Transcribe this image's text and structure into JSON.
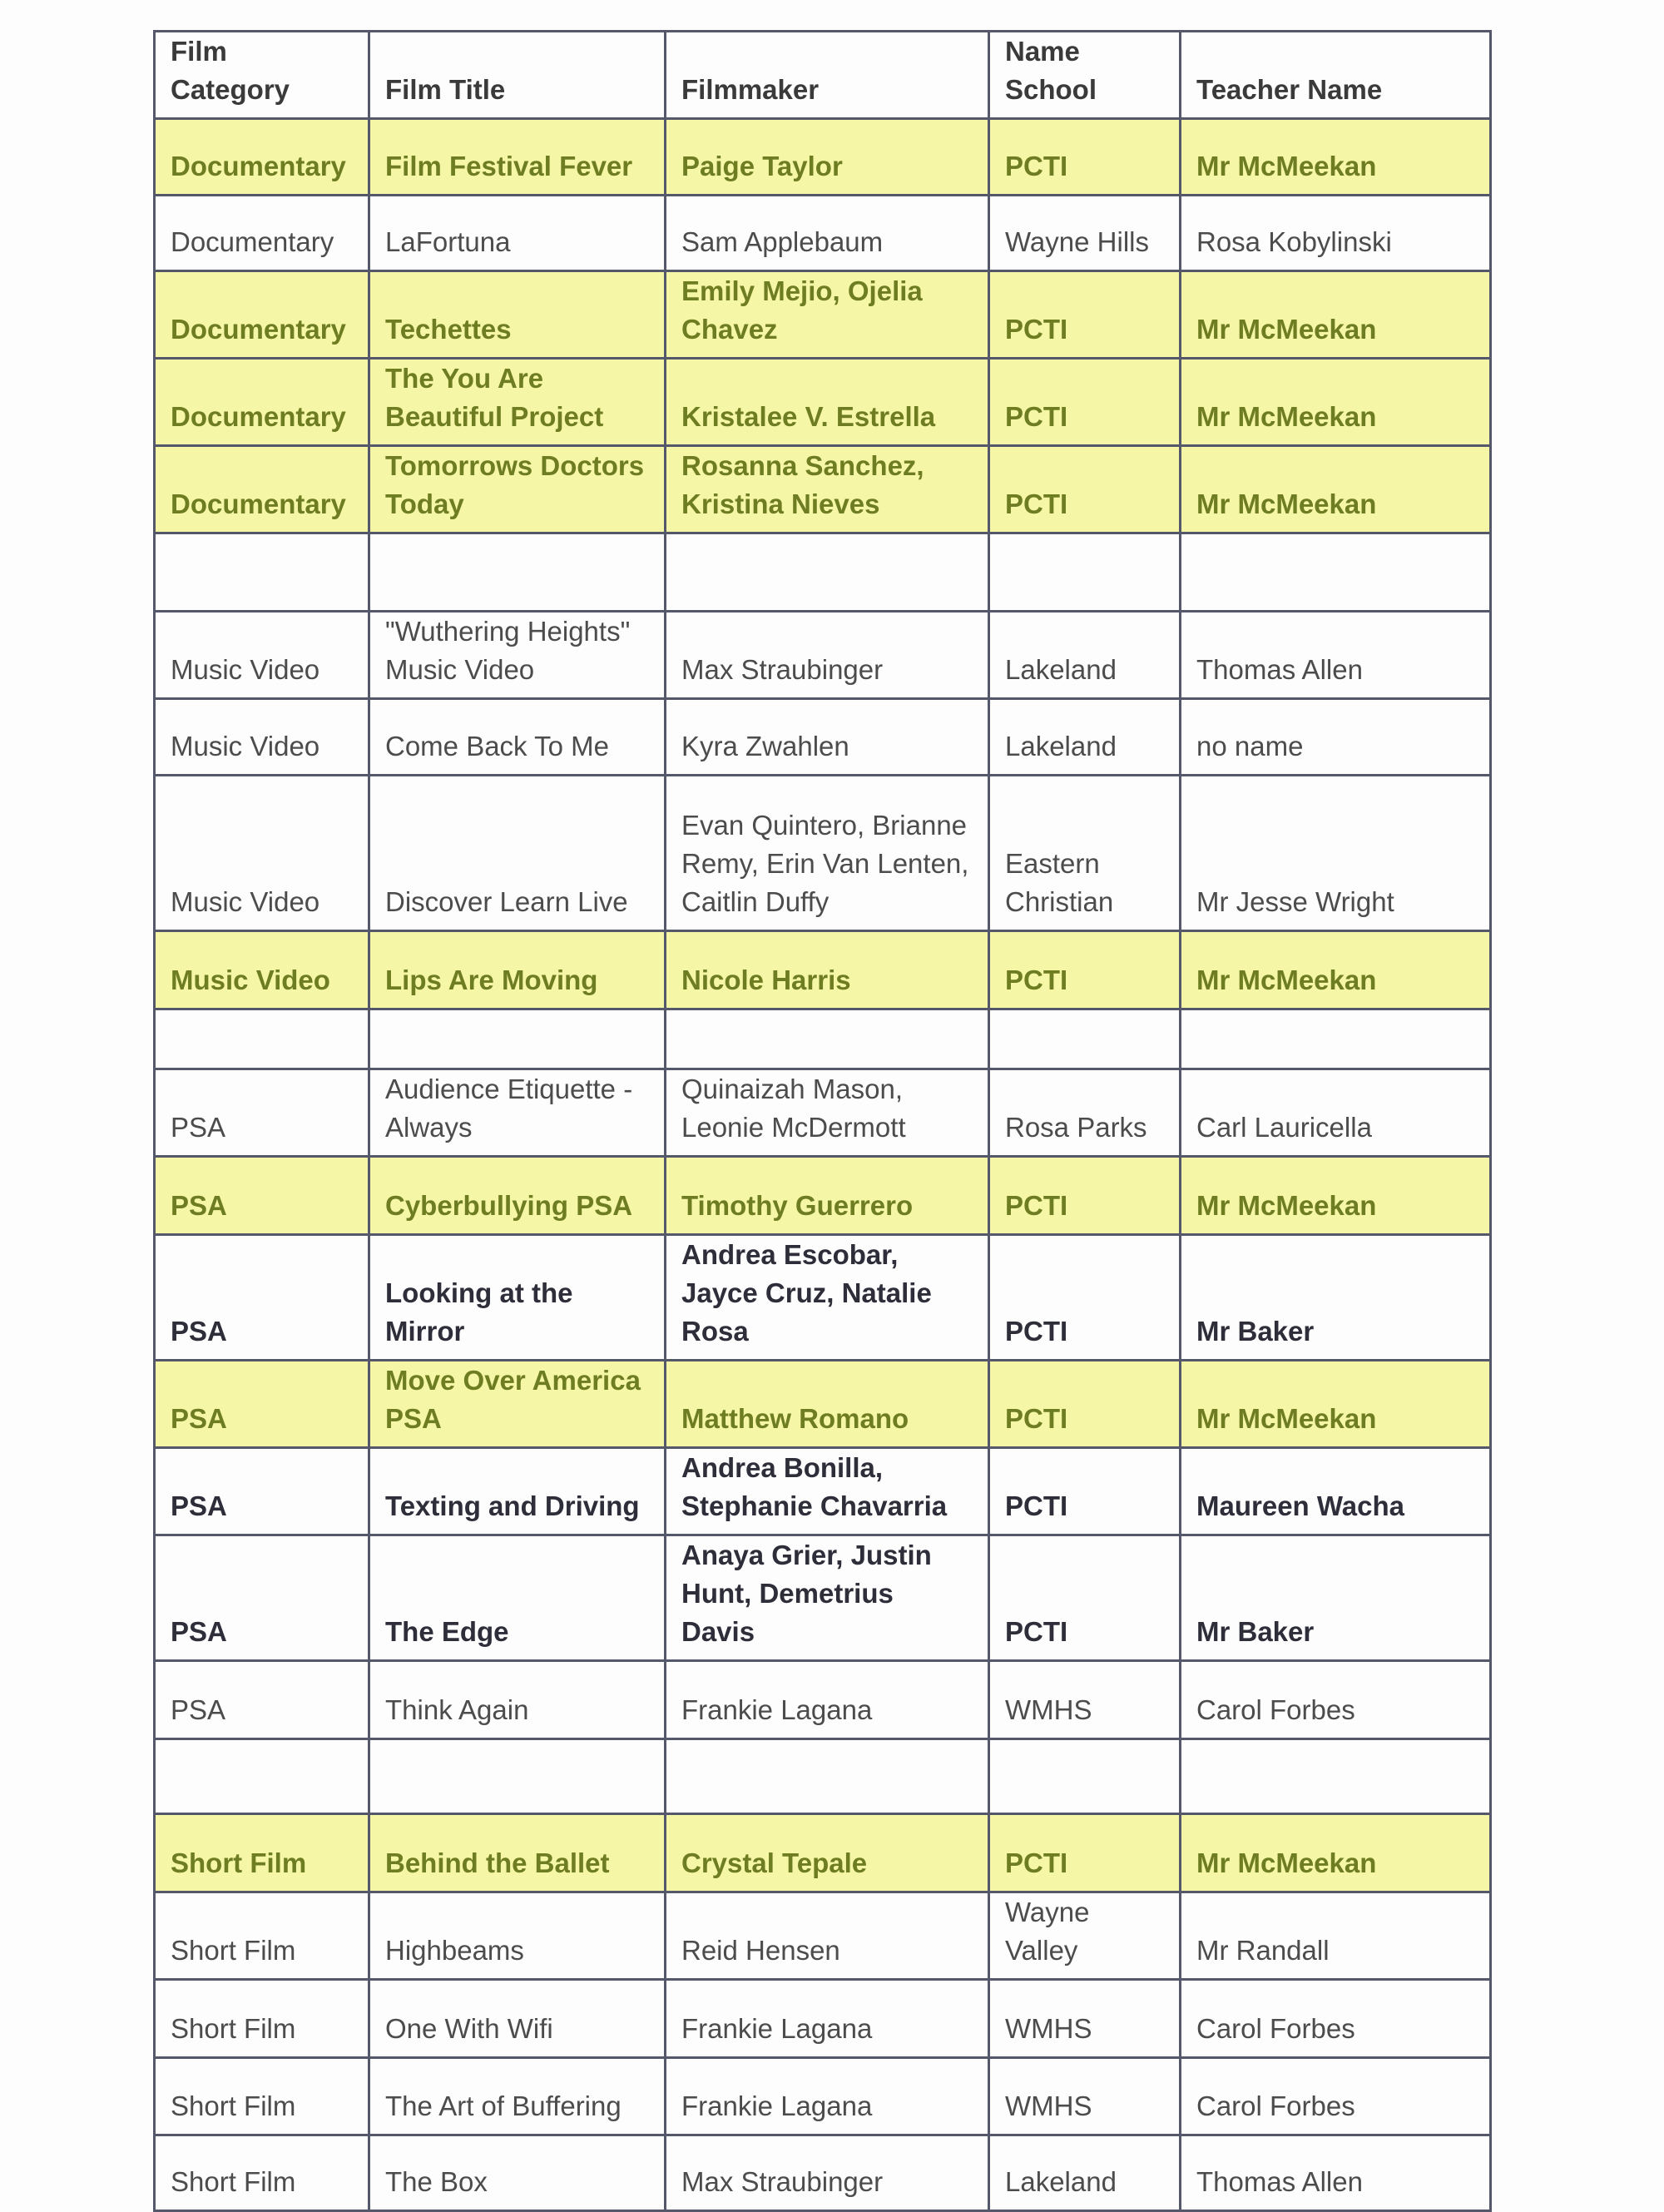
{
  "highlight_color": "#f6f7a6",
  "highlight_text_color": "#6f7d22",
  "headers": [
    "Film Category",
    "Film Title",
    "Filmmaker",
    "Name School",
    "Teacher Name"
  ],
  "rows": [
    {
      "style": "hl",
      "cells": [
        "Documentary",
        "Film Festival Fever",
        "Paige Taylor",
        "PCTI",
        "Mr McMeekan"
      ]
    },
    {
      "style": "plain",
      "cells": [
        "Documentary",
        "LaFortuna",
        "Sam Applebaum",
        "Wayne Hills",
        "Rosa Kobylinski"
      ]
    },
    {
      "style": "hl",
      "cells": [
        "Documentary",
        "Techettes",
        "Emily Mejio, Ojelia Chavez",
        "PCTI",
        "Mr McMeekan"
      ]
    },
    {
      "style": "hl",
      "cells": [
        "Documentary",
        "The You Are Beautiful Project",
        "Kristalee V. Estrella",
        "PCTI",
        "Mr McMeekan"
      ]
    },
    {
      "style": "hl",
      "cells": [
        "Documentary",
        "Tomorrows Doctors Today",
        "Rosanna Sanchez, Kristina Nieves",
        "PCTI",
        "Mr McMeekan"
      ]
    },
    {
      "style": "blank",
      "cells": [
        "",
        "",
        "",
        "",
        ""
      ]
    },
    {
      "style": "plain",
      "cells": [
        "Music Video",
        "\"Wuthering Heights\" Music Video",
        "Max Straubinger",
        "Lakeland",
        "Thomas Allen"
      ]
    },
    {
      "style": "plain",
      "cells": [
        "Music Video",
        "Come Back To Me",
        "Kyra Zwahlen",
        "Lakeland",
        "no name"
      ]
    },
    {
      "style": "plain",
      "cells": [
        "Music Video",
        "Discover Learn Live",
        "Evan Quintero, Brianne Remy, Erin Van Lenten, Caitlin Duffy",
        "Eastern Christian",
        "Mr Jesse Wright"
      ]
    },
    {
      "style": "hl",
      "cells": [
        "Music Video",
        "Lips Are Moving",
        "Nicole Harris",
        "PCTI",
        "Mr McMeekan"
      ]
    },
    {
      "style": "blank",
      "cells": [
        "",
        "",
        "",
        "",
        ""
      ]
    },
    {
      "style": "plain",
      "cells": [
        "PSA",
        "Audience Etiquette - Always",
        "Quinaizah Mason, Leonie McDermott",
        "Rosa Parks",
        "Carl Lauricella"
      ]
    },
    {
      "style": "hl",
      "cells": [
        "PSA",
        "Cyberbullying PSA",
        "Timothy Guerrero",
        "PCTI",
        "Mr McMeekan"
      ]
    },
    {
      "style": "bold",
      "cells": [
        "PSA",
        "Looking at the Mirror",
        "Andrea Escobar, Jayce Cruz, Natalie Rosa",
        "PCTI",
        "Mr Baker"
      ]
    },
    {
      "style": "hl",
      "cells": [
        "PSA",
        "Move Over America PSA",
        "Matthew Romano",
        "PCTI",
        "Mr McMeekan"
      ]
    },
    {
      "style": "bold",
      "cells": [
        "PSA",
        "Texting and Driving",
        "Andrea Bonilla, Stephanie Chavarria",
        "PCTI",
        "Maureen Wacha"
      ]
    },
    {
      "style": "bold",
      "cells": [
        "PSA",
        "The Edge",
        "Anaya Grier, Justin Hunt, Demetrius Davis",
        "PCTI",
        "Mr Baker"
      ]
    },
    {
      "style": "plain",
      "cells": [
        "PSA",
        "Think Again",
        "Frankie Lagana",
        "WMHS",
        "Carol Forbes"
      ]
    },
    {
      "style": "blank",
      "cells": [
        "",
        "",
        "",
        "",
        ""
      ]
    },
    {
      "style": "hl",
      "cells": [
        "Short Film",
        "Behind the Ballet",
        "Crystal Tepale",
        "PCTI",
        "Mr McMeekan"
      ]
    },
    {
      "style": "plain",
      "cells": [
        "Short Film",
        "Highbeams",
        "Reid Hensen",
        "Wayne Valley",
        "Mr Randall"
      ]
    },
    {
      "style": "plain",
      "cells": [
        "Short Film",
        "One With Wifi",
        "Frankie Lagana",
        "WMHS",
        "Carol Forbes"
      ]
    },
    {
      "style": "plain",
      "cells": [
        "Short Film",
        "The Art of Buffering",
        "Frankie Lagana",
        "WMHS",
        "Carol Forbes"
      ]
    },
    {
      "style": "plain",
      "cells": [
        "Short Film",
        "The Box",
        "Max Straubinger",
        "Lakeland",
        "Thomas Allen"
      ]
    }
  ]
}
